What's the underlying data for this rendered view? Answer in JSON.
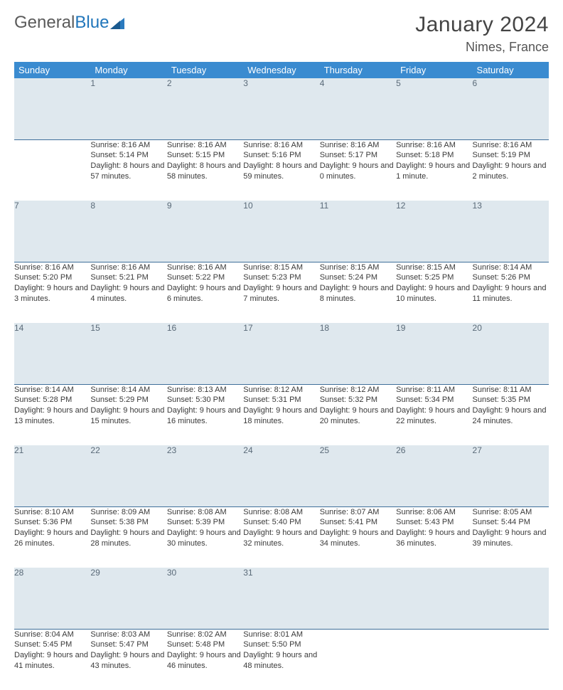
{
  "logo": {
    "text1": "General",
    "text2": "Blue"
  },
  "title": "January 2024",
  "location": "Nimes, France",
  "weekdays": [
    "Sunday",
    "Monday",
    "Tuesday",
    "Wednesday",
    "Thursday",
    "Friday",
    "Saturday"
  ],
  "colors": {
    "header_bg": "#3a8bd0",
    "header_text": "#ffffff",
    "daynum_bg": "#dfe8ee",
    "daynum_border": "#3f6f9a",
    "body_text": "#3a3a3a",
    "logo_gray": "#5a5a5a",
    "logo_blue": "#2176bb"
  },
  "first_weekday_index": 1,
  "days": [
    {
      "n": 1,
      "sr": "8:16 AM",
      "ss": "5:14 PM",
      "dl": "8 hours and 57 minutes."
    },
    {
      "n": 2,
      "sr": "8:16 AM",
      "ss": "5:15 PM",
      "dl": "8 hours and 58 minutes."
    },
    {
      "n": 3,
      "sr": "8:16 AM",
      "ss": "5:16 PM",
      "dl": "8 hours and 59 minutes."
    },
    {
      "n": 4,
      "sr": "8:16 AM",
      "ss": "5:17 PM",
      "dl": "9 hours and 0 minutes."
    },
    {
      "n": 5,
      "sr": "8:16 AM",
      "ss": "5:18 PM",
      "dl": "9 hours and 1 minute."
    },
    {
      "n": 6,
      "sr": "8:16 AM",
      "ss": "5:19 PM",
      "dl": "9 hours and 2 minutes."
    },
    {
      "n": 7,
      "sr": "8:16 AM",
      "ss": "5:20 PM",
      "dl": "9 hours and 3 minutes."
    },
    {
      "n": 8,
      "sr": "8:16 AM",
      "ss": "5:21 PM",
      "dl": "9 hours and 4 minutes."
    },
    {
      "n": 9,
      "sr": "8:16 AM",
      "ss": "5:22 PM",
      "dl": "9 hours and 6 minutes."
    },
    {
      "n": 10,
      "sr": "8:15 AM",
      "ss": "5:23 PM",
      "dl": "9 hours and 7 minutes."
    },
    {
      "n": 11,
      "sr": "8:15 AM",
      "ss": "5:24 PM",
      "dl": "9 hours and 8 minutes."
    },
    {
      "n": 12,
      "sr": "8:15 AM",
      "ss": "5:25 PM",
      "dl": "9 hours and 10 minutes."
    },
    {
      "n": 13,
      "sr": "8:14 AM",
      "ss": "5:26 PM",
      "dl": "9 hours and 11 minutes."
    },
    {
      "n": 14,
      "sr": "8:14 AM",
      "ss": "5:28 PM",
      "dl": "9 hours and 13 minutes."
    },
    {
      "n": 15,
      "sr": "8:14 AM",
      "ss": "5:29 PM",
      "dl": "9 hours and 15 minutes."
    },
    {
      "n": 16,
      "sr": "8:13 AM",
      "ss": "5:30 PM",
      "dl": "9 hours and 16 minutes."
    },
    {
      "n": 17,
      "sr": "8:12 AM",
      "ss": "5:31 PM",
      "dl": "9 hours and 18 minutes."
    },
    {
      "n": 18,
      "sr": "8:12 AM",
      "ss": "5:32 PM",
      "dl": "9 hours and 20 minutes."
    },
    {
      "n": 19,
      "sr": "8:11 AM",
      "ss": "5:34 PM",
      "dl": "9 hours and 22 minutes."
    },
    {
      "n": 20,
      "sr": "8:11 AM",
      "ss": "5:35 PM",
      "dl": "9 hours and 24 minutes."
    },
    {
      "n": 21,
      "sr": "8:10 AM",
      "ss": "5:36 PM",
      "dl": "9 hours and 26 minutes."
    },
    {
      "n": 22,
      "sr": "8:09 AM",
      "ss": "5:38 PM",
      "dl": "9 hours and 28 minutes."
    },
    {
      "n": 23,
      "sr": "8:08 AM",
      "ss": "5:39 PM",
      "dl": "9 hours and 30 minutes."
    },
    {
      "n": 24,
      "sr": "8:08 AM",
      "ss": "5:40 PM",
      "dl": "9 hours and 32 minutes."
    },
    {
      "n": 25,
      "sr": "8:07 AM",
      "ss": "5:41 PM",
      "dl": "9 hours and 34 minutes."
    },
    {
      "n": 26,
      "sr": "8:06 AM",
      "ss": "5:43 PM",
      "dl": "9 hours and 36 minutes."
    },
    {
      "n": 27,
      "sr": "8:05 AM",
      "ss": "5:44 PM",
      "dl": "9 hours and 39 minutes."
    },
    {
      "n": 28,
      "sr": "8:04 AM",
      "ss": "5:45 PM",
      "dl": "9 hours and 41 minutes."
    },
    {
      "n": 29,
      "sr": "8:03 AM",
      "ss": "5:47 PM",
      "dl": "9 hours and 43 minutes."
    },
    {
      "n": 30,
      "sr": "8:02 AM",
      "ss": "5:48 PM",
      "dl": "9 hours and 46 minutes."
    },
    {
      "n": 31,
      "sr": "8:01 AM",
      "ss": "5:50 PM",
      "dl": "9 hours and 48 minutes."
    }
  ],
  "labels": {
    "sunrise": "Sunrise:",
    "sunset": "Sunset:",
    "daylight": "Daylight:"
  }
}
